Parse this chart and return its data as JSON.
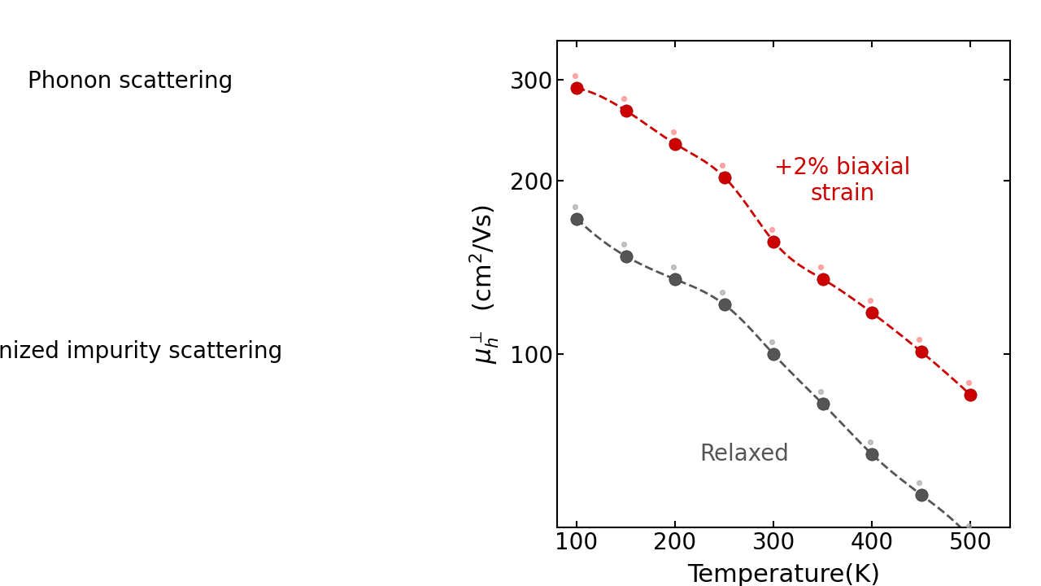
{
  "title": "",
  "xlabel": "Temperature(K)",
  "background_color": "#f0f0f0",
  "plot_bg_color": "#ffffff",
  "red_x": [
    100,
    150,
    200,
    250,
    300,
    350,
    400,
    450,
    500
  ],
  "red_y": [
    290,
    265,
    232,
    203,
    157,
    135,
    118,
    101,
    85
  ],
  "gray_x": [
    100,
    150,
    200,
    250,
    300,
    350,
    400,
    450,
    500
  ],
  "gray_y": [
    172,
    148,
    135,
    122,
    100,
    82,
    67,
    57,
    48
  ],
  "red_color": "#cc0000",
  "gray_color": "#555555",
  "label_red": "+2% biaxial\nstrain",
  "label_gray": "Relaxed",
  "xlim": [
    80,
    540
  ],
  "ylim_log": [
    50,
    350
  ],
  "xticks": [
    100,
    200,
    300,
    400,
    500
  ],
  "yticks": [
    100,
    200,
    300
  ],
  "axis_fontsize": 22,
  "tick_fontsize": 20,
  "label_fontsize": 20,
  "marker_size": 11,
  "line_width": 2.0,
  "left_bg_color": "#f5f5f5",
  "phonon_title": "Phonon scattering",
  "ionized_title": "Ionized impurity scattering"
}
